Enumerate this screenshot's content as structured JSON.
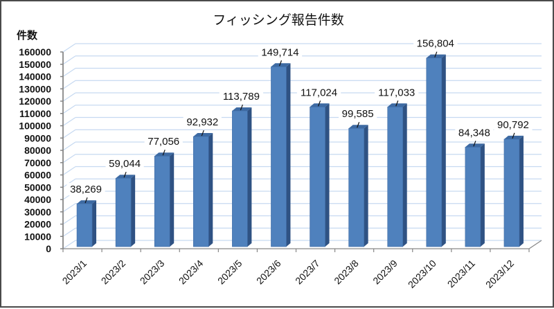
{
  "chart_data": {
    "type": "bar",
    "title": "フィッシング報告件数",
    "xlabel": "",
    "ylabel": "件数",
    "categories": [
      "2023/1",
      "2023/2",
      "2023/3",
      "2023/4",
      "2023/5",
      "2023/6",
      "2023/7",
      "2023/8",
      "2023/9",
      "2023/10",
      "2023/11",
      "2023/12"
    ],
    "values": [
      38269,
      59044,
      77056,
      92932,
      113789,
      149714,
      117024,
      99585,
      117033,
      156804,
      84348,
      90792
    ],
    "data_labels": [
      "38,269",
      "59,044",
      "77,056",
      "92,932",
      "113,789",
      "149,714",
      "117,024",
      "99,585",
      "117,033",
      "156,804",
      "84,348",
      "90,792"
    ],
    "ylim": [
      0,
      160000
    ],
    "yticks": [
      0,
      10000,
      20000,
      30000,
      40000,
      50000,
      60000,
      70000,
      80000,
      90000,
      100000,
      110000,
      120000,
      130000,
      140000,
      150000,
      160000
    ],
    "grid": true,
    "legend": "none",
    "style": "3d-column",
    "colors": {
      "bar_front": "#4f81bd",
      "bar_side": "#2f5283",
      "bar_top": "#3d6aa3",
      "gridline": "#c6d9f1",
      "axis": "#868686",
      "frame": "#4a4a4a"
    }
  }
}
